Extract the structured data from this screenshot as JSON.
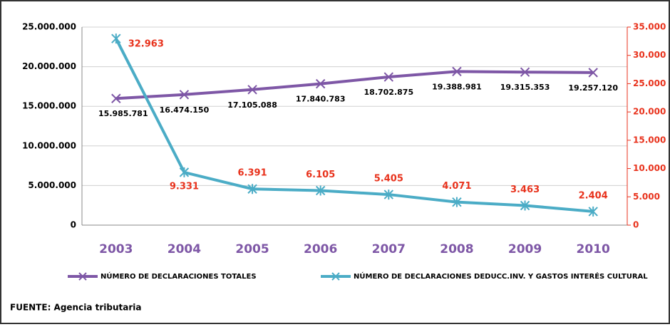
{
  "chart_data": {
    "type": "line",
    "categories": [
      "2003",
      "2004",
      "2005",
      "2006",
      "2007",
      "2008",
      "2009",
      "2010"
    ],
    "series": [
      {
        "name": "NÚMERO DE DECLARACIONES TOTALES",
        "color": "#7e57a6",
        "values": [
          15985781,
          16474150,
          17105088,
          17840783,
          18702875,
          19388981,
          19315353,
          19257120
        ],
        "value_labels": [
          "15.985.781",
          "16.474.150",
          "17.105.088",
          "17.840.783",
          "18.702.875",
          "19.388.981",
          "19.315.353",
          "19.257.120"
        ]
      },
      {
        "name": "NÚMERO DE DECLARACIONES DEDUCC.INV. Y GASTOS INTERÉS CULTURAL",
        "color": "#4bacc6",
        "axis": "y2",
        "values": [
          32963,
          9331,
          6391,
          6105,
          5405,
          4071,
          3463,
          2404
        ],
        "value_labels": [
          "32.963",
          "9.331",
          "6.391",
          "6.105",
          "5.405",
          "4.071",
          "3.463",
          "2.404"
        ]
      }
    ],
    "ylim": [
      0,
      25000000
    ],
    "yticks": [
      0,
      {
        "value": 5000000,
        "label": "5.000.000"
      },
      {
        "value": 10000000,
        "label": "10.000.000"
      },
      {
        "value": 15000000,
        "label": "15.000.000"
      },
      {
        "value": 20000000,
        "label": "20.000.000"
      },
      {
        "value": 25000000,
        "label": "25.000.000"
      }
    ],
    "y2lim": [
      0,
      35000
    ],
    "y2ticks": [
      0,
      {
        "value": 5000,
        "label": "5.000"
      },
      {
        "value": 10000,
        "label": "10.000"
      },
      {
        "value": 15000,
        "label": "15.000"
      },
      {
        "value": 20000,
        "label": "20.000"
      },
      {
        "value": 25000,
        "label": "25.000"
      },
      {
        "value": 30000,
        "label": "30.000"
      },
      {
        "value": 35000,
        "label": "35.000"
      }
    ],
    "grid": true,
    "note": "FUENTE: Agencia tributaria"
  }
}
